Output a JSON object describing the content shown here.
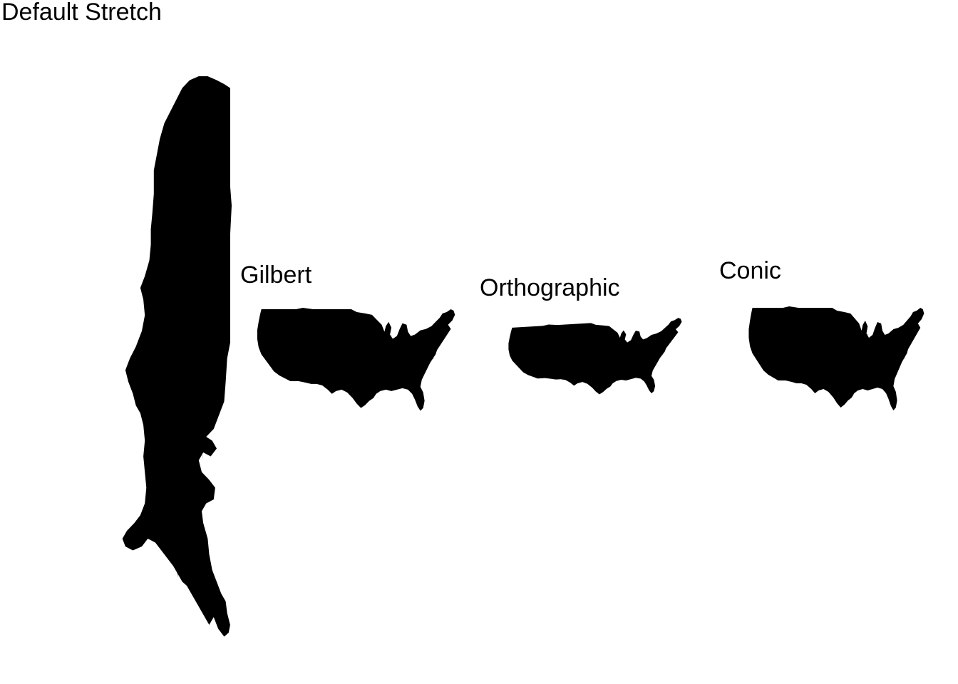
{
  "panels": [
    {
      "title": "Default Stretch",
      "projection": "none (stretched)"
    },
    {
      "title": "Gilbert",
      "projection": "gilbert"
    },
    {
      "title": "Orthographic",
      "projection": "orthographic"
    },
    {
      "title": "Conic",
      "projection": "conic"
    }
  ],
  "map_subject": "contiguous United States state boundaries",
  "colors": {
    "background": "#ffffff",
    "stroke": "#000000"
  }
}
